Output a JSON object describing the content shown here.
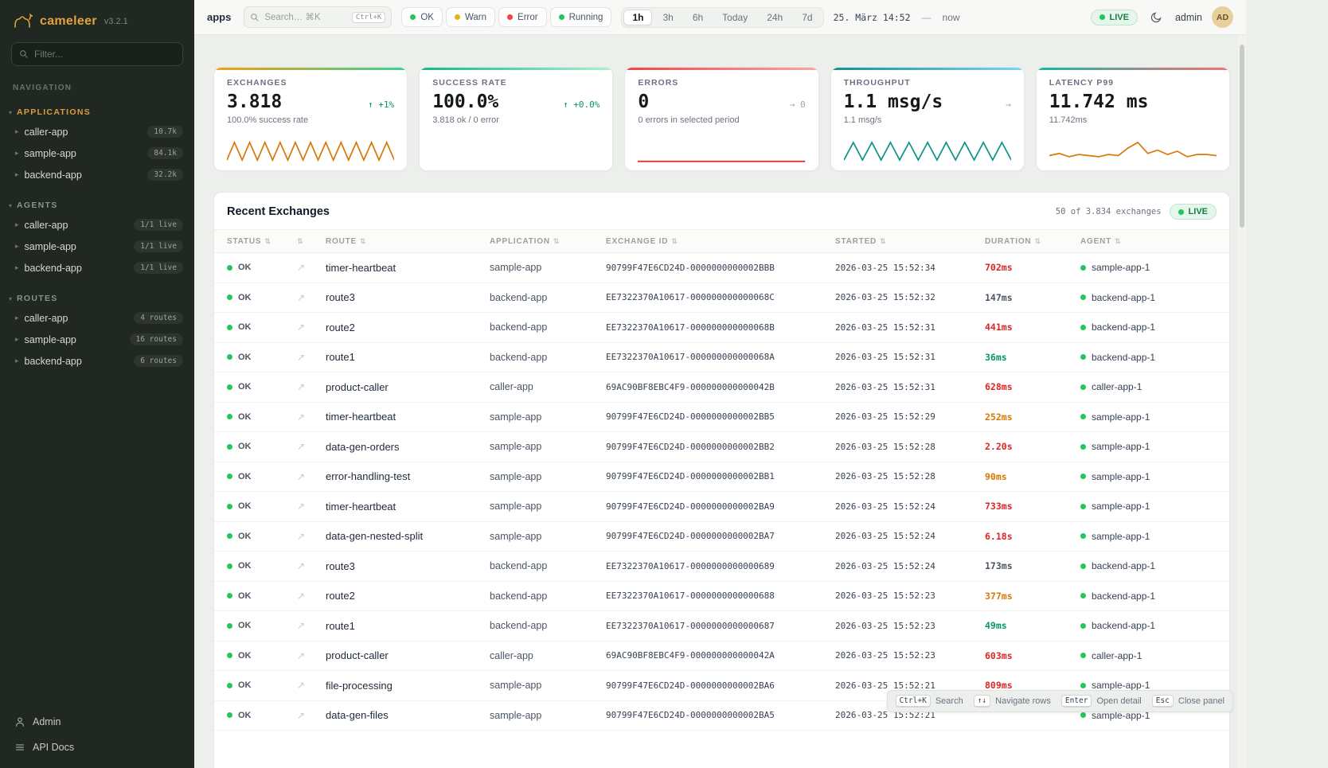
{
  "meta": {
    "app_name": "cameleer",
    "version": "v3.2.1"
  },
  "icons": {
    "chevron_down": "▾",
    "chevron_right": "▸",
    "sort": "⇅",
    "open_link": "↗"
  },
  "colors": {
    "duration": {
      "slow": "#dc2626",
      "warn": "#d97706",
      "norm": "#4b5563",
      "fast": "#059669"
    },
    "status_ok": "#22c55e",
    "agent_ok": "#22c55e"
  },
  "sidebar": {
    "filter_placeholder": "Filter...",
    "nav_label": "NAVIGATION",
    "sections": [
      {
        "title": "APPLICATIONS",
        "accent": "#d99e3f",
        "items": [
          {
            "label": "caller-app",
            "badge": "10.7k"
          },
          {
            "label": "sample-app",
            "badge": "84.1k"
          },
          {
            "label": "backend-app",
            "badge": "32.2k"
          }
        ]
      },
      {
        "title": "AGENTS",
        "accent": "#8a938a",
        "items": [
          {
            "label": "caller-app",
            "badge": "1/1 live"
          },
          {
            "label": "sample-app",
            "badge": "1/1 live"
          },
          {
            "label": "backend-app",
            "badge": "1/1 live"
          }
        ]
      },
      {
        "title": "ROUTES",
        "accent": "#8a938a",
        "items": [
          {
            "label": "caller-app",
            "badge": "4 routes"
          },
          {
            "label": "sample-app",
            "badge": "16 routes"
          },
          {
            "label": "backend-app",
            "badge": "6 routes"
          }
        ]
      }
    ],
    "footer": [
      {
        "label": "Admin"
      },
      {
        "label": "API Docs"
      }
    ]
  },
  "topbar": {
    "title": "apps",
    "search_placeholder": "Search… ⌘K",
    "search_kbd": "Ctrl+K",
    "chips": [
      {
        "label": "OK",
        "color": "#22c55e"
      },
      {
        "label": "Warn",
        "color": "#eab308"
      },
      {
        "label": "Error",
        "color": "#ef4444"
      },
      {
        "label": "Running",
        "color": "#22c55e"
      }
    ],
    "ranges": [
      "1h",
      "3h",
      "6h",
      "Today",
      "24h",
      "7d"
    ],
    "active_range": "1h",
    "datetime": "25. März 14:52",
    "separator": "—",
    "now_label": "now",
    "live_label": "LIVE",
    "user": "admin",
    "avatar": "AD"
  },
  "cards": [
    {
      "title": "EXCHANGES",
      "value": "3.818",
      "delta": "↑ +1%",
      "delta_color": "#059669",
      "sub": "100.0% success rate",
      "accent_from": "#f59e0b",
      "accent_to": "#34d399",
      "spark_color": "#d97706",
      "spark": [
        1,
        9,
        1,
        9,
        1,
        9,
        1,
        9,
        1,
        9,
        1,
        9,
        1,
        9,
        1,
        9,
        1,
        9,
        1,
        9,
        1,
        9,
        1
      ]
    },
    {
      "title": "SUCCESS RATE",
      "value": "100.0%",
      "delta": "↑ +0.0%",
      "delta_color": "#059669",
      "sub": "3.818 ok / 0 error",
      "accent_from": "#10b981",
      "accent_to": "#a7f3d0"
    },
    {
      "title": "ERRORS",
      "value": "0",
      "delta": "→ 0",
      "delta_color": "#9ca3af",
      "sub": "0 errors in selected period",
      "accent_from": "#ef4444",
      "accent_to": "#fca5a5",
      "spark_color": "#dc2626",
      "spark": [
        0.4,
        0.4
      ]
    },
    {
      "title": "THROUGHPUT",
      "value": "1.1 msg/s",
      "delta": "→",
      "delta_color": "#9ca3af",
      "sub": "1.1 msg/s",
      "accent_from": "#0d9488",
      "accent_to": "#7dd3fc",
      "spark_color": "#0d9488",
      "spark": [
        1,
        9,
        1,
        9,
        1,
        9,
        1,
        9,
        1,
        9,
        1,
        9,
        1,
        9,
        1,
        9,
        1,
        9,
        1
      ]
    },
    {
      "title": "LATENCY P99",
      "value": "11.742 ms",
      "delta": "",
      "delta_color": "#9ca3af",
      "sub": "11.742ms",
      "accent_from": "#14b8a6",
      "accent_to": "#f87171",
      "spark_color": "#d97706",
      "spark": [
        3,
        4,
        2.5,
        3.5,
        3,
        2.5,
        3.5,
        3,
        6.5,
        9,
        4,
        5.5,
        3.5,
        5,
        2.5,
        3.5,
        3.5,
        3
      ]
    }
  ],
  "table": {
    "title": "Recent Exchanges",
    "meta": "50 of 3.834 exchanges",
    "live_label": "LIVE",
    "columns": [
      "STATUS",
      "",
      "ROUTE",
      "APPLICATION",
      "EXCHANGE ID",
      "STARTED",
      "DURATION",
      "AGENT"
    ],
    "rows": [
      {
        "status": "OK",
        "route": "timer-heartbeat",
        "application": "sample-app",
        "exchange_id": "90799F47E6CD24D-0000000000002BBB",
        "started": "2026-03-25 15:52:34",
        "duration": "702ms",
        "duration_class": "slow",
        "agent": "sample-app-1"
      },
      {
        "status": "OK",
        "route": "route3",
        "application": "backend-app",
        "exchange_id": "EE7322370A10617-000000000000068C",
        "started": "2026-03-25 15:52:32",
        "duration": "147ms",
        "duration_class": "norm",
        "agent": "backend-app-1"
      },
      {
        "status": "OK",
        "route": "route2",
        "application": "backend-app",
        "exchange_id": "EE7322370A10617-000000000000068B",
        "started": "2026-03-25 15:52:31",
        "duration": "441ms",
        "duration_class": "slow",
        "agent": "backend-app-1"
      },
      {
        "status": "OK",
        "route": "route1",
        "application": "backend-app",
        "exchange_id": "EE7322370A10617-000000000000068A",
        "started": "2026-03-25 15:52:31",
        "duration": "36ms",
        "duration_class": "fast",
        "agent": "backend-app-1"
      },
      {
        "status": "OK",
        "route": "product-caller",
        "application": "caller-app",
        "exchange_id": "69AC90BF8EBC4F9-000000000000042B",
        "started": "2026-03-25 15:52:31",
        "duration": "628ms",
        "duration_class": "slow",
        "agent": "caller-app-1"
      },
      {
        "status": "OK",
        "route": "timer-heartbeat",
        "application": "sample-app",
        "exchange_id": "90799F47E6CD24D-0000000000002BB5",
        "started": "2026-03-25 15:52:29",
        "duration": "252ms",
        "duration_class": "warn",
        "agent": "sample-app-1"
      },
      {
        "status": "OK",
        "route": "data-gen-orders",
        "application": "sample-app",
        "exchange_id": "90799F47E6CD24D-0000000000002BB2",
        "started": "2026-03-25 15:52:28",
        "duration": "2.20s",
        "duration_class": "slow",
        "agent": "sample-app-1"
      },
      {
        "status": "OK",
        "route": "error-handling-test",
        "application": "sample-app",
        "exchange_id": "90799F47E6CD24D-0000000000002BB1",
        "started": "2026-03-25 15:52:28",
        "duration": "90ms",
        "duration_class": "warn",
        "agent": "sample-app-1"
      },
      {
        "status": "OK",
        "route": "timer-heartbeat",
        "application": "sample-app",
        "exchange_id": "90799F47E6CD24D-0000000000002BA9",
        "started": "2026-03-25 15:52:24",
        "duration": "733ms",
        "duration_class": "slow",
        "agent": "sample-app-1"
      },
      {
        "status": "OK",
        "route": "data-gen-nested-split",
        "application": "sample-app",
        "exchange_id": "90799F47E6CD24D-0000000000002BA7",
        "started": "2026-03-25 15:52:24",
        "duration": "6.18s",
        "duration_class": "slow",
        "agent": "sample-app-1"
      },
      {
        "status": "OK",
        "route": "route3",
        "application": "backend-app",
        "exchange_id": "EE7322370A10617-0000000000000689",
        "started": "2026-03-25 15:52:24",
        "duration": "173ms",
        "duration_class": "norm",
        "agent": "backend-app-1"
      },
      {
        "status": "OK",
        "route": "route2",
        "application": "backend-app",
        "exchange_id": "EE7322370A10617-0000000000000688",
        "started": "2026-03-25 15:52:23",
        "duration": "377ms",
        "duration_class": "warn",
        "agent": "backend-app-1"
      },
      {
        "status": "OK",
        "route": "route1",
        "application": "backend-app",
        "exchange_id": "EE7322370A10617-0000000000000687",
        "started": "2026-03-25 15:52:23",
        "duration": "49ms",
        "duration_class": "fast",
        "agent": "backend-app-1"
      },
      {
        "status": "OK",
        "route": "product-caller",
        "application": "caller-app",
        "exchange_id": "69AC90BF8EBC4F9-000000000000042A",
        "started": "2026-03-25 15:52:23",
        "duration": "603ms",
        "duration_class": "slow",
        "agent": "caller-app-1"
      },
      {
        "status": "OK",
        "route": "file-processing",
        "application": "sample-app",
        "exchange_id": "90799F47E6CD24D-0000000000002BA6",
        "started": "2026-03-25 15:52:21",
        "duration": "809ms",
        "duration_class": "slow",
        "agent": "sample-app-1"
      },
      {
        "status": "OK",
        "route": "data-gen-files",
        "application": "sample-app",
        "exchange_id": "90799F47E6CD24D-0000000000002BA5",
        "started": "2026-03-25 15:52:21",
        "duration": "",
        "duration_class": "norm",
        "agent": "sample-app-1"
      }
    ]
  },
  "hints": [
    {
      "key": "Ctrl+K",
      "label": "Search"
    },
    {
      "key": "↑↓",
      "label": "Navigate rows"
    },
    {
      "key": "Enter",
      "label": "Open detail"
    },
    {
      "key": "Esc",
      "label": "Close panel"
    }
  ]
}
